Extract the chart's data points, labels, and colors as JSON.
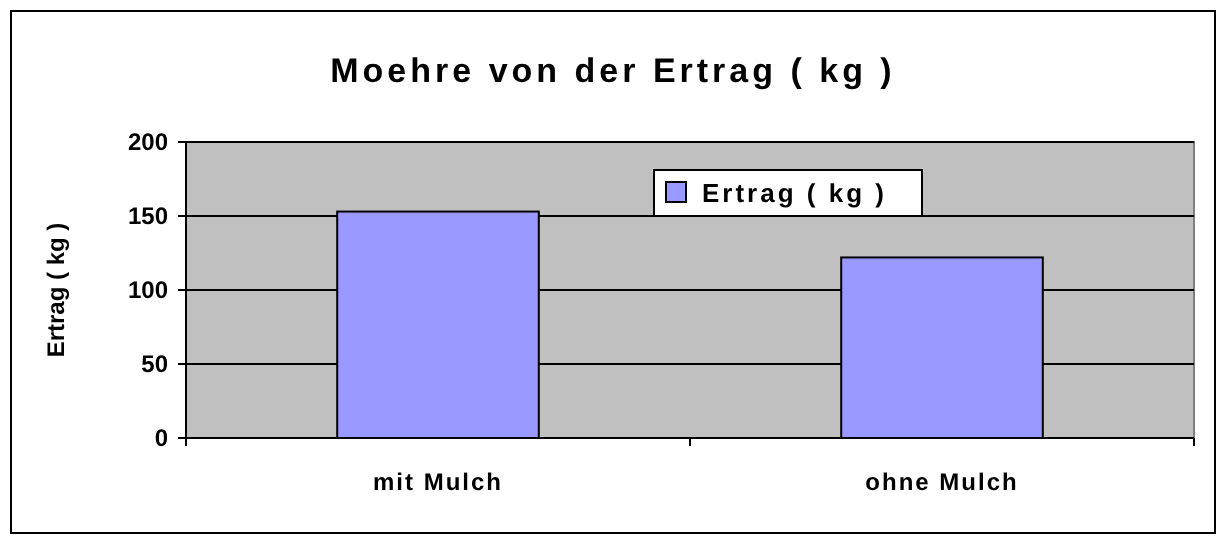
{
  "chart_data": {
    "type": "bar",
    "title": "Moehre von der Ertrag ( kg )",
    "ylabel": "Ertrag ( kg )",
    "categories": [
      "mit Mulch",
      "ohne Mulch"
    ],
    "series": [
      {
        "name": "Ertrag ( kg )",
        "color": "#9999ff",
        "values": [
          153,
          122
        ]
      }
    ],
    "ylim": [
      0,
      200
    ],
    "yticks": [
      0,
      50,
      100,
      150,
      200
    ],
    "grid": "y",
    "legend": "top right"
  }
}
